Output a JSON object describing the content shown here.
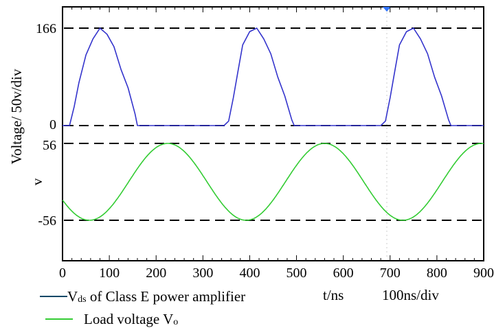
{
  "chart_data": {
    "type": "line",
    "title": "",
    "ylabel": "Voltage/ 50v/div",
    "ylabel_unit": "v",
    "xlabel_text": "t/ns",
    "xdiv_text": "100ns/div",
    "xlim": [
      0,
      900
    ],
    "x_ticks": [
      "0",
      "100",
      "200",
      "300",
      "400",
      "500",
      "600",
      "700",
      "800",
      "900"
    ],
    "y_ticks_top": [
      "166",
      "0"
    ],
    "y_ticks_bottom": [
      "56",
      "-56"
    ],
    "grid": false,
    "reference_lines": [
      166,
      0,
      56,
      -56
    ],
    "series": [
      {
        "name": "Vds of Class E power amplifier",
        "panel": "top",
        "color": "#3333cc",
        "x": [
          0,
          15,
          25,
          35,
          50,
          65,
          80,
          95,
          110,
          125,
          140,
          155,
          160,
          200,
          250,
          300,
          345,
          355,
          365,
          375,
          385,
          400,
          415,
          430,
          445,
          460,
          475,
          490,
          495,
          550,
          600,
          650,
          680,
          690,
          700,
          710,
          720,
          735,
          750,
          765,
          780,
          795,
          810,
          825,
          830,
          860,
          900
        ],
        "y": [
          0,
          0,
          30,
          75,
          118,
          150,
          166,
          158,
          132,
          98,
          62,
          22,
          0,
          0,
          0,
          0,
          0,
          10,
          45,
          95,
          135,
          160,
          166,
          150,
          120,
          85,
          48,
          12,
          0,
          0,
          0,
          0,
          0,
          10,
          45,
          95,
          135,
          160,
          166,
          150,
          120,
          85,
          48,
          12,
          0,
          0,
          0
        ]
      },
      {
        "name": "Load voltage Vo",
        "panel": "bottom",
        "color": "#33cc33",
        "waveform": "sine",
        "amplitude": 56,
        "period_ns": 335,
        "peak_at_ns": 225,
        "x_start": 0,
        "x_end": 900
      }
    ],
    "marker": {
      "x": 700,
      "color": "#3377ff"
    }
  },
  "legend": {
    "entries": [
      {
        "prefix": "V",
        "sub": "ds",
        "rest": " of Class E power amplifier"
      },
      {
        "prefix": "Load voltage V",
        "sub": "o",
        "rest": ""
      }
    ],
    "x_axis_note": "t/ns",
    "x_div_note": "100ns/div"
  }
}
